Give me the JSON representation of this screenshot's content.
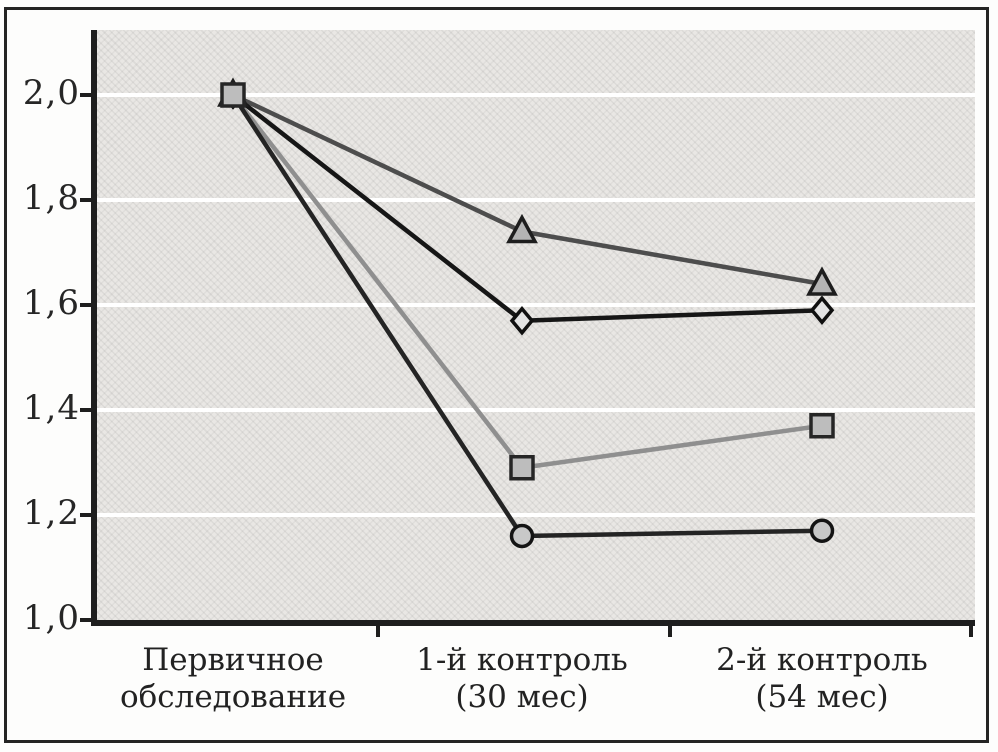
{
  "figure": {
    "kind": "scanned-line-chart",
    "title": "",
    "frame_color": "#242424",
    "plot_background": "#e9e7e4",
    "gridline_color": "#ffffff",
    "axis_color": "#1e1e1e",
    "text_color": "#222222"
  },
  "chart_data": {
    "type": "line",
    "title": "",
    "xlabel": "",
    "ylabel": "",
    "legend": "none",
    "grid": "horizontal white gridlines at each y tick",
    "ylim": [
      1.0,
      2.11
    ],
    "categories": [
      [
        "Первичное",
        "обследование"
      ],
      [
        "1-й контроль",
        "(30 мес)"
      ],
      [
        "2-й контроль",
        "(54 мес)"
      ]
    ],
    "y_ticks": [
      {
        "label": "2,0",
        "value": 2.0
      },
      {
        "label": "1,8",
        "value": 1.8
      },
      {
        "label": "1,6",
        "value": 1.6
      },
      {
        "label": "1,4",
        "value": 1.4
      },
      {
        "label": "1,2",
        "value": 1.2
      },
      {
        "label": "1,0",
        "value": 1.0
      }
    ],
    "series": [
      {
        "name": "triangle-marker-series",
        "marker": "triangle",
        "values": [
          2.0,
          1.74,
          1.64
        ],
        "line_color": "#4d4d4d",
        "marker_fill": "#b4b4b4",
        "marker_stroke": "#1e1e1e"
      },
      {
        "name": "diamond-marker-series",
        "marker": "diamond",
        "values": [
          2.0,
          1.57,
          1.59
        ],
        "line_color": "#161616",
        "marker_fill": "#e3e3e3",
        "marker_stroke": "#101010"
      },
      {
        "name": "square-marker-series",
        "marker": "square",
        "values": [
          2.0,
          1.29,
          1.37
        ],
        "line_color": "#8f8f8f",
        "marker_fill": "#bdbdbd",
        "marker_stroke": "#262626"
      },
      {
        "name": "circle-marker-series",
        "marker": "circle",
        "values": [
          2.0,
          1.16,
          1.17
        ],
        "line_color": "#242424",
        "marker_fill": "#c8c8c8",
        "marker_stroke": "#141414"
      }
    ]
  }
}
